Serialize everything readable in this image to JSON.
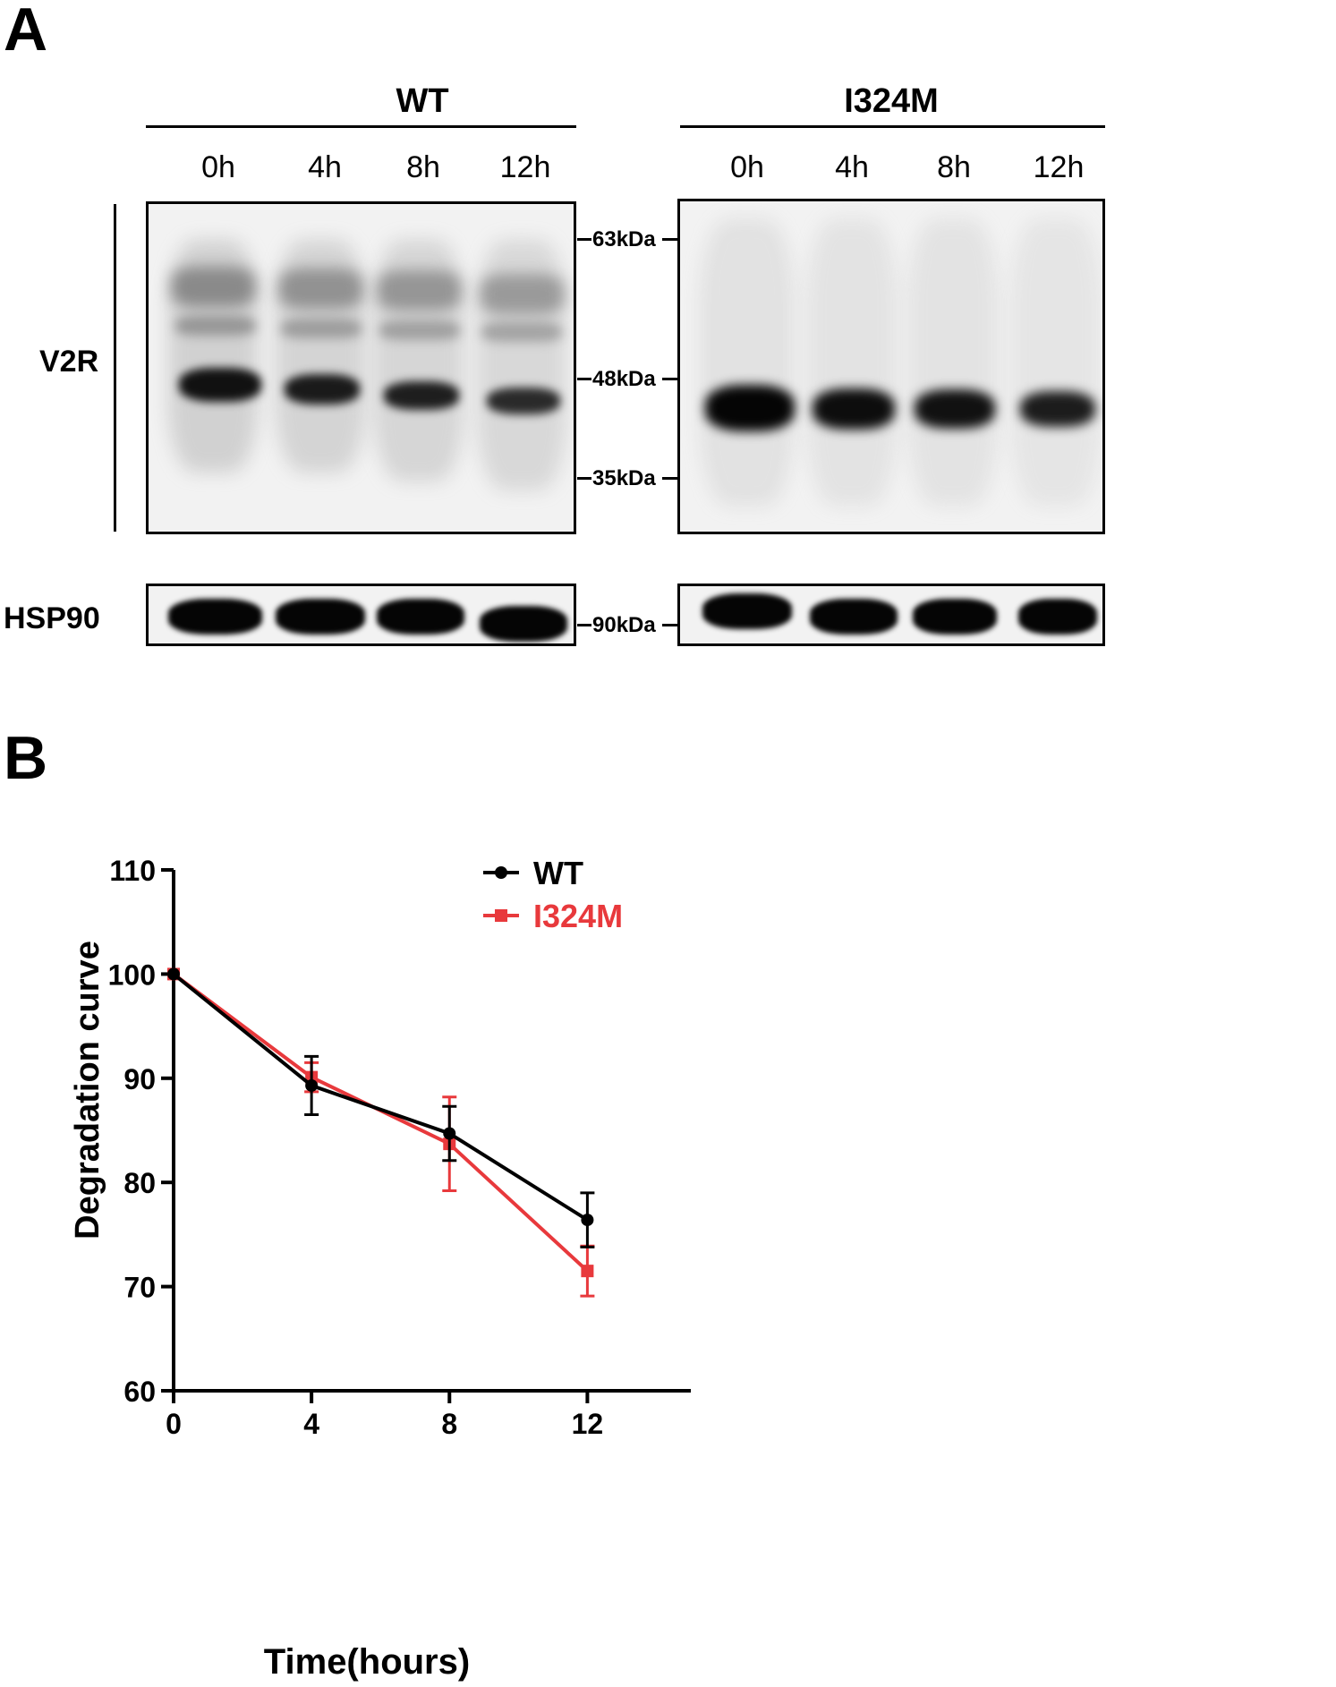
{
  "panelA": {
    "letter": "A",
    "groups": [
      "WT",
      "I324M"
    ],
    "lanes": [
      "0h",
      "4h",
      "8h",
      "12h"
    ],
    "rows": [
      "V2R",
      "HSP90"
    ],
    "markers_v2r": [
      "63kDa",
      "48kDa",
      "35kDa"
    ],
    "marker_hsp90": "90kDa"
  },
  "panelB": {
    "letter": "B"
  },
  "chart_data": {
    "type": "line",
    "title": "",
    "xlabel": "Time(hours)",
    "ylabel": "Degradation curve",
    "xlim": [
      0,
      15
    ],
    "ylim": [
      60,
      110
    ],
    "xticks": [
      0,
      4,
      8,
      12
    ],
    "yticks": [
      60,
      70,
      80,
      90,
      100,
      110
    ],
    "legend_position": "top-right",
    "series": [
      {
        "name": "WT",
        "color": "#000000",
        "marker": "circle",
        "x": [
          0,
          4,
          8,
          12
        ],
        "y": [
          100,
          89.3,
          84.7,
          76.4
        ],
        "err": [
          0,
          2.8,
          2.6,
          2.6
        ]
      },
      {
        "name": "I324M",
        "color": "#e8393c",
        "marker": "square",
        "x": [
          0,
          4,
          8,
          12
        ],
        "y": [
          100,
          90.1,
          83.7,
          71.5
        ],
        "err": [
          0,
          1.4,
          4.5,
          2.4
        ]
      }
    ]
  }
}
